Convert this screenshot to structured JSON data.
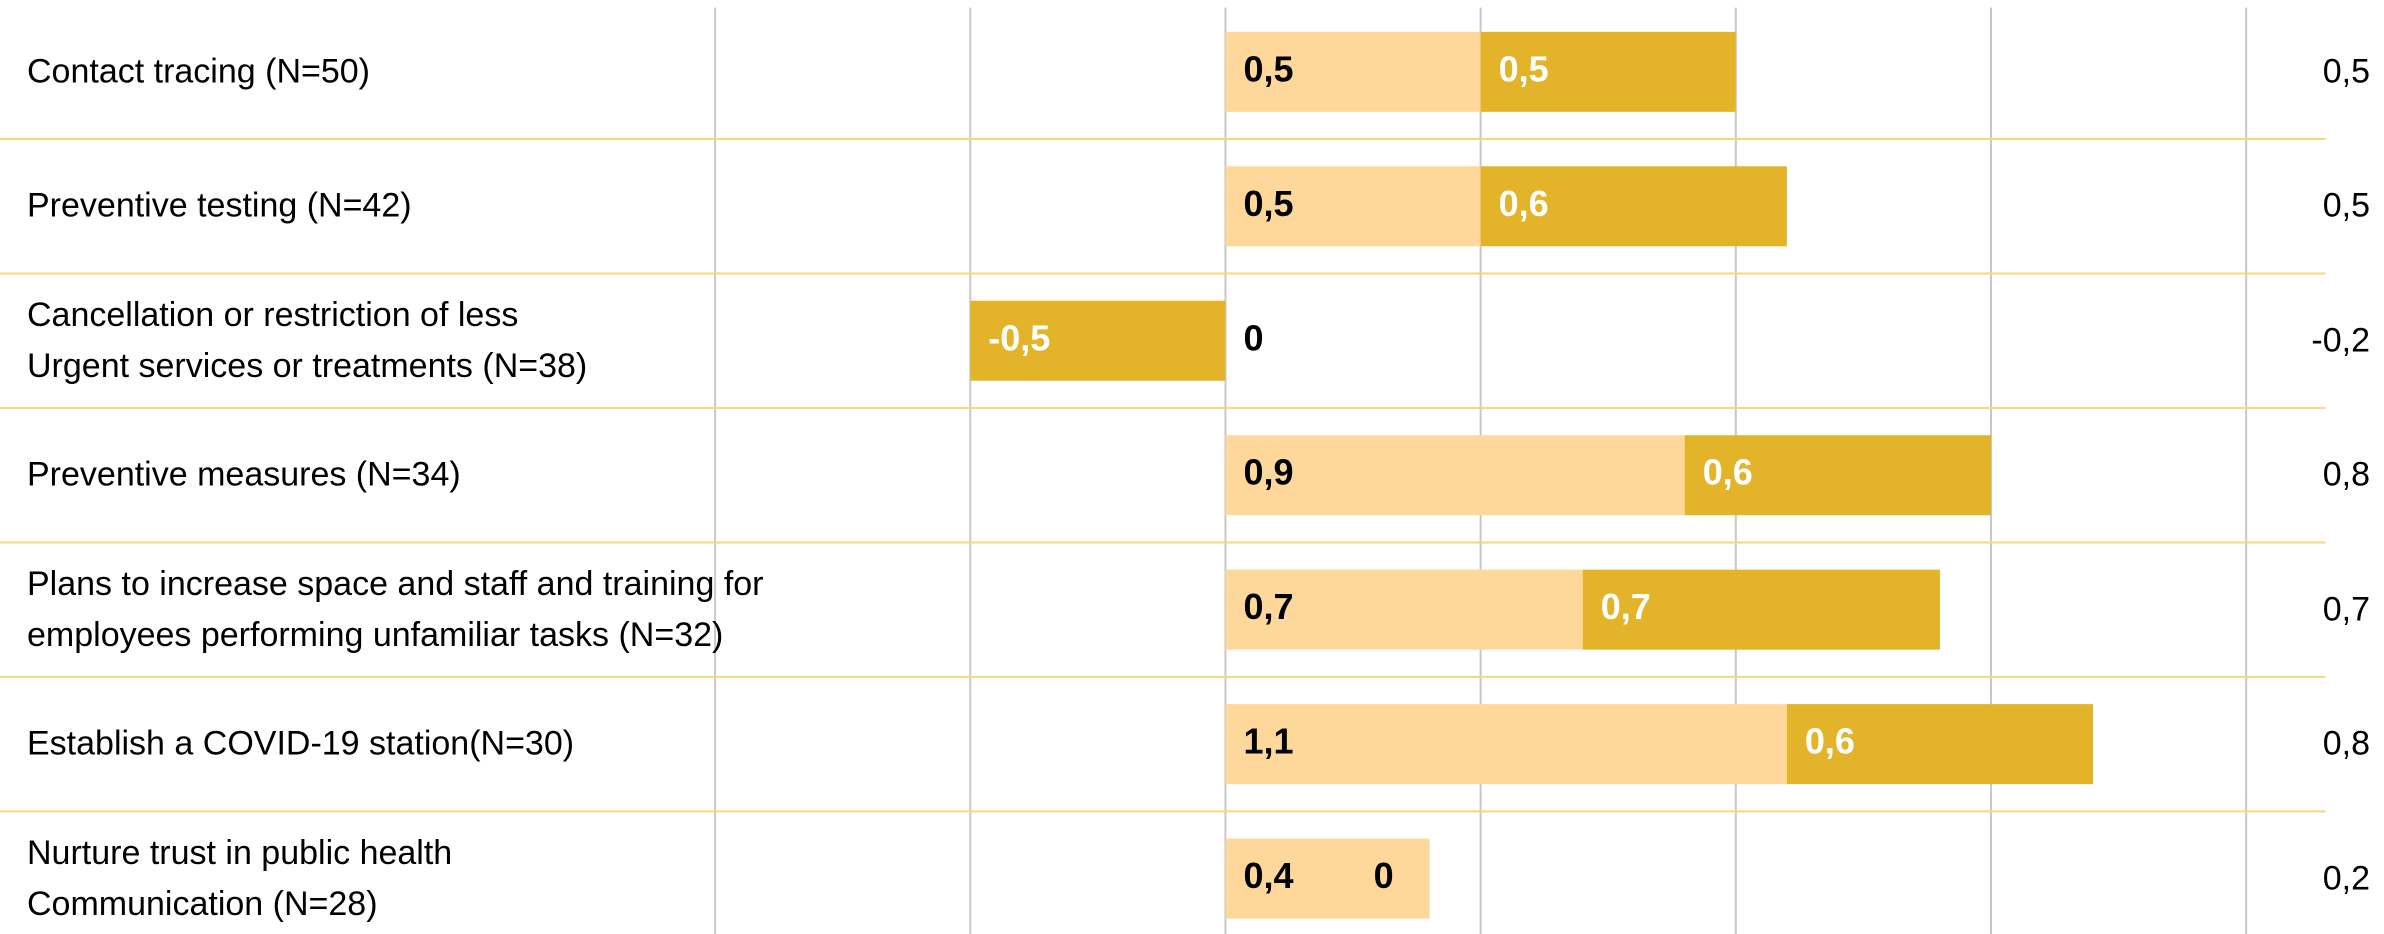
{
  "chart_data": {
    "type": "stacked_bar_horizontal",
    "categories": [
      "Contact tracing (N=50)",
      "Preventive  testing (N=42)",
      "Cancellation or restriction of less\nUrgent services  or treatments (N=38)",
      "Preventive  measures (N=34)",
      "Plans to increase space and staff and training for\nemployees performing unfamiliar tasks (N=32)",
      "Establish a COVID-19 station(N=30)",
      "Nurture trust in public health\nCommunication (N=28)"
    ],
    "series": [
      {
        "color": "#fdd89a",
        "values": [
          0.5,
          0.5,
          0,
          0.9,
          0.7,
          1.1,
          0.4
        ],
        "value_labels": [
          "0,5",
          "0,5",
          "0",
          "0,9",
          "0,7",
          "1,1",
          "0,4"
        ]
      },
      {
        "color": "#e3b42a",
        "values": [
          0.5,
          0.6,
          -0.5,
          0.6,
          0.7,
          0.6,
          0
        ],
        "value_labels": [
          "0,5",
          "0,6",
          "-0,5",
          "0,6",
          "0,7",
          "0,6",
          "0"
        ]
      }
    ],
    "averages": {
      "values": [
        0.5,
        0.5,
        -0.2,
        0.8,
        0.7,
        0.8,
        0.2
      ],
      "value_labels": [
        "0,5",
        "0,5",
        "-0,2",
        "0,8",
        "0,7",
        "0,8",
        "0,2"
      ]
    },
    "xlim": [
      -1,
      2
    ],
    "xticks": [
      -1,
      -0.5,
      0,
      0.5,
      1,
      1.5,
      2
    ],
    "grid": true
  }
}
